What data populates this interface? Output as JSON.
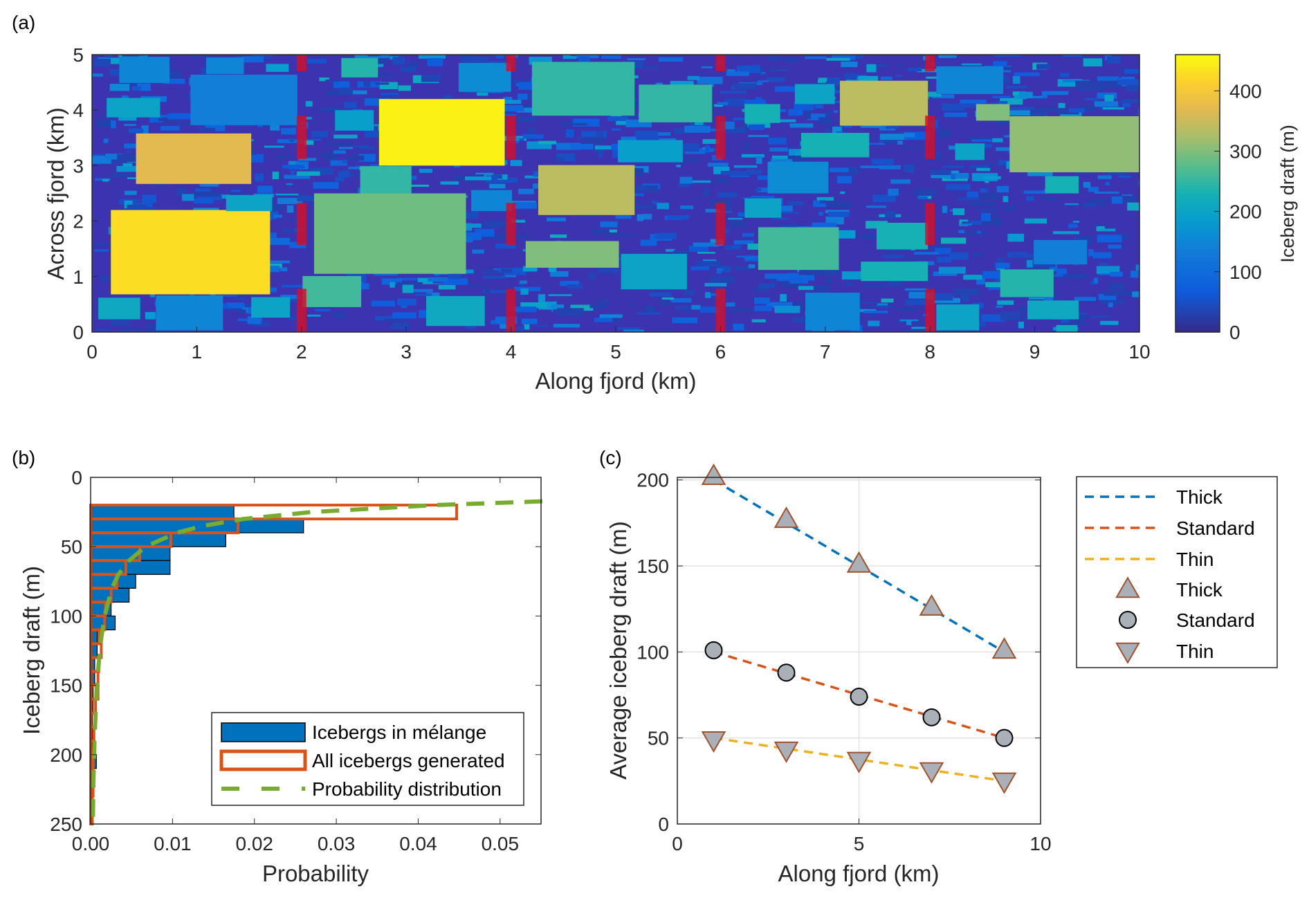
{
  "panel_labels": [
    "(a)",
    "(b)",
    "(c)"
  ],
  "chart_data": [
    {
      "type": "heatmap",
      "panel": "(a)",
      "xlabel": "Along fjord (km)",
      "ylabel": "Across fjord (km)",
      "xlim": [
        0,
        10
      ],
      "ylim": [
        0,
        5
      ],
      "xticks": [
        "0",
        "1",
        "2",
        "3",
        "4",
        "5",
        "6",
        "7",
        "8",
        "9",
        "10"
      ],
      "yticks": [
        "0",
        "1",
        "2",
        "3",
        "4",
        "5"
      ],
      "colorbar": {
        "label": "Iceberg draft (m)",
        "range": [
          0,
          460
        ],
        "ticks": [
          "0",
          "100",
          "200",
          "300",
          "400"
        ],
        "colormap": "parula"
      },
      "background_draft": 20,
      "background_color": "#3b33b0",
      "section_marker_color": "#d0102e",
      "section_boundaries_km": [
        2,
        4,
        6,
        8
      ],
      "large_icebergs_km_draft": [
        [
          0.18,
          1.7,
          0.68,
          2.2,
          430
        ],
        [
          0.42,
          1.52,
          2.67,
          3.58,
          370
        ],
        [
          0.94,
          1.96,
          3.73,
          4.64,
          140
        ],
        [
          0.26,
          0.74,
          4.49,
          4.96,
          150
        ],
        [
          0.14,
          0.65,
          3.87,
          4.22,
          200
        ],
        [
          0.06,
          0.46,
          0.23,
          0.62,
          210
        ],
        [
          0.61,
          1.25,
          0.03,
          0.66,
          150
        ],
        [
          1.52,
          1.89,
          0.26,
          0.63,
          200
        ],
        [
          1.28,
          1.72,
          2.18,
          2.47,
          200
        ],
        [
          1.09,
          1.45,
          4.65,
          4.95,
          150
        ],
        [
          2.74,
          3.94,
          3.0,
          4.2,
          450
        ],
        [
          2.12,
          3.57,
          1.05,
          2.5,
          290
        ],
        [
          2.01,
          2.57,
          0.45,
          1.01,
          260
        ],
        [
          2.56,
          3.05,
          2.5,
          2.99,
          250
        ],
        [
          3.19,
          3.75,
          0.11,
          0.65,
          210
        ],
        [
          2.38,
          2.73,
          4.59,
          4.94,
          240
        ],
        [
          2.32,
          2.69,
          3.63,
          4.0,
          190
        ],
        [
          3.62,
          4.01,
          2.18,
          2.56,
          150
        ],
        [
          3.5,
          4.0,
          4.33,
          4.85,
          160
        ],
        [
          4.2,
          5.18,
          3.9,
          4.87,
          250
        ],
        [
          4.26,
          5.18,
          2.11,
          3.01,
          340
        ],
        [
          4.14,
          5.03,
          1.16,
          1.64,
          300
        ],
        [
          5.05,
          5.68,
          0.77,
          1.41,
          200
        ],
        [
          5.22,
          5.92,
          3.78,
          4.46,
          250
        ],
        [
          5.02,
          5.64,
          3.06,
          3.46,
          190
        ],
        [
          6.36,
          7.13,
          1.12,
          1.89,
          260
        ],
        [
          6.77,
          7.42,
          3.15,
          3.59,
          230
        ],
        [
          6.45,
          7.03,
          2.5,
          3.07,
          160
        ],
        [
          7.14,
          7.98,
          3.72,
          4.53,
          340
        ],
        [
          7.49,
          7.98,
          1.49,
          1.97,
          230
        ],
        [
          7.34,
          7.98,
          0.92,
          1.27,
          230
        ],
        [
          6.81,
          7.33,
          0.03,
          0.71,
          150
        ],
        [
          8.06,
          8.7,
          4.29,
          4.79,
          150
        ],
        [
          8.76,
          10.0,
          2.88,
          3.89,
          310
        ],
        [
          8.44,
          8.76,
          3.81,
          4.11,
          300
        ],
        [
          8.67,
          9.18,
          0.63,
          1.13,
          240
        ],
        [
          8.06,
          8.47,
          0.03,
          0.5,
          200
        ],
        [
          8.93,
          9.42,
          0.23,
          0.57,
          210
        ],
        [
          8.99,
          9.5,
          1.22,
          1.66,
          140
        ],
        [
          6.23,
          6.57,
          3.77,
          4.11,
          230
        ],
        [
          6.71,
          7.09,
          4.11,
          4.47,
          200
        ],
        [
          6.23,
          6.58,
          2.06,
          2.41,
          200
        ],
        [
          8.24,
          8.52,
          3.1,
          3.4,
          200
        ],
        [
          9.1,
          9.42,
          2.5,
          2.81,
          230
        ]
      ]
    },
    {
      "type": "bar",
      "orientation": "horizontal",
      "panel": "(b)",
      "xlabel": "Probability",
      "ylabel": "Iceberg draft (m)",
      "xlim": [
        0,
        0.055
      ],
      "ylim": [
        0,
        250
      ],
      "y_reversed": true,
      "xticks": [
        "0.00",
        "0.01",
        "0.02",
        "0.03",
        "0.04",
        "0.05"
      ],
      "yticks": [
        "0",
        "50",
        "100",
        "150",
        "200",
        "250"
      ],
      "bin_edges": [
        20,
        30,
        40,
        50,
        60,
        70,
        80,
        90,
        100,
        110,
        120,
        130,
        140,
        150,
        160,
        170,
        180,
        190,
        200,
        210,
        220,
        230,
        240,
        250
      ],
      "series": [
        {
          "name": "Icebergs in mélange",
          "color": "#0072bd",
          "values": [
            0.0175,
            0.026,
            0.0165,
            0.0097,
            0.0097,
            0.0055,
            0.0047,
            0.0025,
            0.003,
            0.0008,
            0.0008,
            0.0005,
            0.0005,
            0.0003,
            0.0003,
            0.0002,
            0.0002,
            0.0002,
            0.0007,
            0.0002,
            0.0001,
            0.0001,
            0.0001
          ]
        },
        {
          "name": "All icebergs generated",
          "color": "#d95319",
          "values": [
            0.0447,
            0.018,
            0.0098,
            0.006,
            0.0043,
            0.0032,
            0.0025,
            0.0018,
            0.0017,
            0.001,
            0.0013,
            0.001,
            0.0009,
            0.0009,
            0.0006,
            0.0005,
            0.0004,
            0.0004,
            0.0003,
            0.0003,
            0.0003,
            0.0002,
            0.0002
          ]
        },
        {
          "name": "Probability distribution",
          "color": "#77ac30",
          "style": "dashed",
          "points": [
            [
              0.056,
              17.3
            ],
            [
              0.042,
              20
            ],
            [
              0.027,
              25
            ],
            [
              0.0187,
              30
            ],
            [
              0.0137,
              35
            ],
            [
              0.0105,
              40
            ],
            [
              0.0067,
              50
            ],
            [
              0.0047,
              60
            ],
            [
              0.0034,
              70
            ],
            [
              0.0026,
              80
            ],
            [
              0.0017,
              100
            ],
            [
              0.0012,
              120
            ],
            [
              0.00075,
              150
            ],
            [
              0.00047,
              190
            ],
            [
              0.00034,
              220
            ],
            [
              0.00027,
              250
            ]
          ]
        }
      ],
      "legend": "bottom-right"
    },
    {
      "type": "line",
      "panel": "(c)",
      "xlabel": "Along fjord (km)",
      "ylabel": "Average iceberg draft (m)",
      "xlim": [
        0,
        10
      ],
      "ylim": [
        0,
        201.5
      ],
      "grid": true,
      "xticks": [
        "0",
        "5",
        "10"
      ],
      "yticks": [
        "0",
        "50",
        "100",
        "150",
        "200"
      ],
      "lines": [
        {
          "name": "Thick",
          "color": "#0072bd",
          "style": "dashed",
          "x": [
            1,
            9
          ],
          "y": [
            200,
            100
          ]
        },
        {
          "name": "Standard",
          "color": "#d95319",
          "style": "dashed",
          "x": [
            1,
            9
          ],
          "y": [
            100,
            50
          ]
        },
        {
          "name": "Thin",
          "color": "#edb120",
          "style": "dashed",
          "x": [
            1,
            9
          ],
          "y": [
            50,
            25
          ]
        }
      ],
      "markers": [
        {
          "name": "Thick",
          "marker": "triangle-up",
          "x": [
            1,
            3,
            5,
            7,
            9
          ],
          "y": [
            202,
            177,
            151,
            126,
            101
          ]
        },
        {
          "name": "Standard",
          "marker": "circle",
          "x": [
            1,
            3,
            5,
            7,
            9
          ],
          "y": [
            101,
            88,
            74,
            62,
            50
          ]
        },
        {
          "name": "Thin",
          "marker": "triangle-down",
          "x": [
            1,
            3,
            5,
            7,
            9
          ],
          "y": [
            49,
            43,
            37,
            31,
            25
          ]
        }
      ],
      "marker_fill": "#a9b0b8",
      "legend": "outside-right"
    }
  ]
}
